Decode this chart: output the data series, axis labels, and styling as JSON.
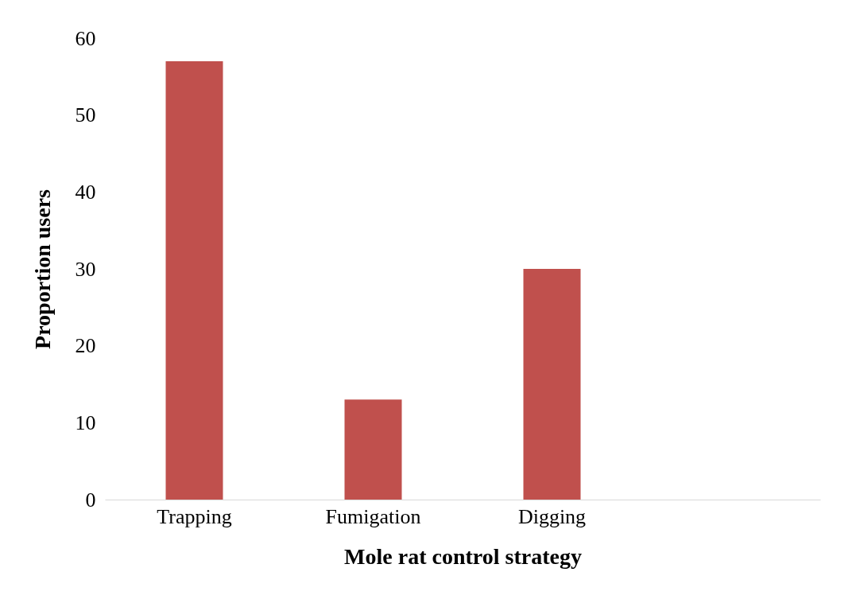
{
  "chart_data": {
    "type": "bar",
    "xlabel": "Mole rat control strategy",
    "ylabel": "Proportion users",
    "categories": [
      "Trapping",
      "Fumigation",
      "Digging",
      null
    ],
    "values": [
      57,
      13,
      30,
      null
    ],
    "color": "#c0504d",
    "ylim": [
      0,
      60
    ],
    "yticks": [
      0,
      10,
      20,
      30,
      40,
      50,
      60
    ],
    "grid": false
  }
}
